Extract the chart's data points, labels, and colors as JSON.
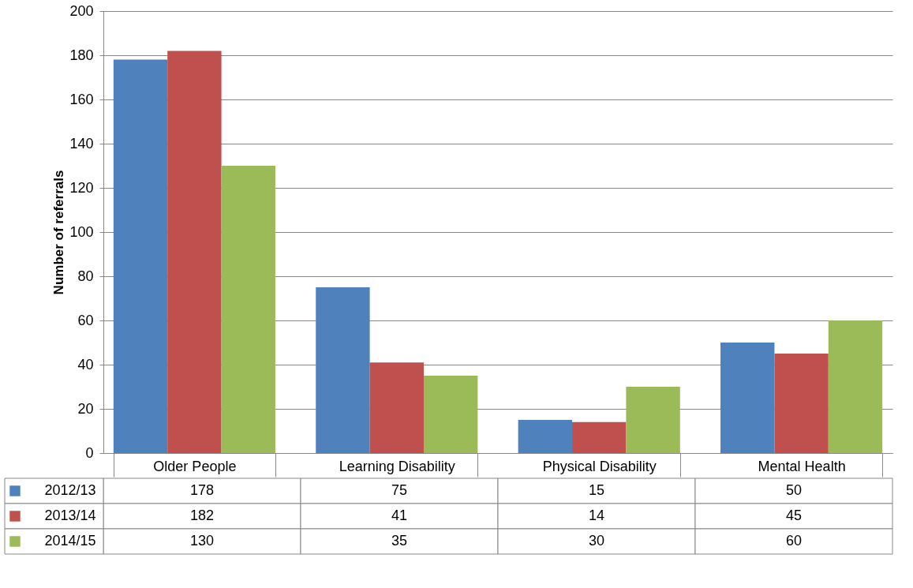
{
  "chart_data": {
    "type": "bar",
    "ylabel": "Number of referrals",
    "categories": [
      "Older People",
      "Learning Disability",
      "Physical Disability",
      "Mental Health"
    ],
    "series": [
      {
        "name": "2012/13",
        "color": "#4f81bd",
        "values": [
          178,
          75,
          15,
          50
        ]
      },
      {
        "name": "2013/14",
        "color": "#c0504d",
        "values": [
          182,
          41,
          14,
          45
        ]
      },
      {
        "name": "2014/15",
        "color": "#9bbb59",
        "values": [
          130,
          35,
          30,
          60
        ]
      }
    ],
    "ylim": [
      0,
      200
    ],
    "yticks": [
      0,
      20,
      40,
      60,
      80,
      100,
      120,
      140,
      160,
      180,
      200
    ],
    "grid": "y",
    "legend": "bottom",
    "data_labels": true
  }
}
